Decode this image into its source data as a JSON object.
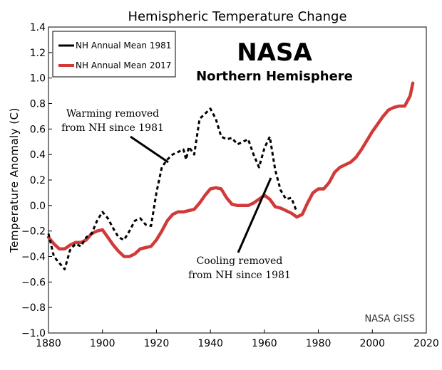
{
  "chart_data": {
    "type": "line",
    "title": "Hemispheric Temperature Change",
    "ylabel": "Temperature Anomaly (C)",
    "xlim": [
      1880,
      2020
    ],
    "ylim": [
      -1.0,
      1.4
    ],
    "xticks": [
      1880,
      1900,
      1920,
      1940,
      1960,
      1980,
      2000,
      2020
    ],
    "xtick_labels": [
      "1880",
      "1900",
      "1920",
      "1940",
      "1960",
      "1980",
      "2000",
      "2020"
    ],
    "yticks": [
      -1.0,
      -0.8,
      -0.6,
      -0.4,
      -0.2,
      0.0,
      0.2,
      0.4,
      0.6,
      0.8,
      1.0,
      1.2,
      1.4
    ],
    "ytick_labels": [
      "−1.0",
      "−0.8",
      "−0.6",
      "−0.4",
      "−0.2",
      "0.0",
      "0.2",
      "0.4",
      "0.6",
      "0.8",
      "1.0",
      "1.2",
      "1.4"
    ],
    "legend_position": "top-left",
    "grid": false,
    "series": [
      {
        "name": "NH Annual Mean 1981",
        "color": "#000000",
        "style": "dashed",
        "x": [
          1880,
          1882,
          1884,
          1886,
          1888,
          1890,
          1892,
          1894,
          1896,
          1898,
          1900,
          1902,
          1904,
          1906,
          1908,
          1910,
          1912,
          1914,
          1916,
          1918,
          1920,
          1922,
          1924,
          1926,
          1928,
          1930,
          1931,
          1932,
          1934,
          1936,
          1938,
          1940,
          1942,
          1944,
          1946,
          1948,
          1950,
          1952,
          1954,
          1956,
          1958,
          1960,
          1962,
          1964,
          1966,
          1968,
          1970,
          1972
        ],
        "y": [
          -0.22,
          -0.4,
          -0.45,
          -0.5,
          -0.35,
          -0.3,
          -0.32,
          -0.25,
          -0.22,
          -0.12,
          -0.05,
          -0.1,
          -0.18,
          -0.25,
          -0.27,
          -0.2,
          -0.12,
          -0.1,
          -0.15,
          -0.16,
          0.1,
          0.3,
          0.36,
          0.4,
          0.42,
          0.44,
          0.36,
          0.46,
          0.4,
          0.68,
          0.72,
          0.76,
          0.68,
          0.54,
          0.52,
          0.53,
          0.48,
          0.5,
          0.52,
          0.4,
          0.3,
          0.45,
          0.54,
          0.28,
          0.12,
          0.05,
          0.06,
          -0.05
        ]
      },
      {
        "name": "NH Annual Mean 2017",
        "color": "#d23a3a",
        "style": "solid",
        "x": [
          1880,
          1882,
          1884,
          1886,
          1888,
          1890,
          1892,
          1894,
          1896,
          1898,
          1900,
          1902,
          1904,
          1906,
          1908,
          1910,
          1912,
          1914,
          1916,
          1918,
          1920,
          1922,
          1924,
          1926,
          1928,
          1930,
          1932,
          1934,
          1936,
          1938,
          1940,
          1942,
          1944,
          1946,
          1948,
          1950,
          1952,
          1954,
          1956,
          1958,
          1960,
          1962,
          1964,
          1966,
          1968,
          1970,
          1972,
          1974,
          1976,
          1978,
          1980,
          1982,
          1984,
          1986,
          1988,
          1990,
          1992,
          1994,
          1996,
          1998,
          2000,
          2002,
          2004,
          2006,
          2008,
          2010,
          2012,
          2014,
          2015
        ],
        "y": [
          -0.25,
          -0.3,
          -0.34,
          -0.34,
          -0.31,
          -0.29,
          -0.29,
          -0.27,
          -0.22,
          -0.2,
          -0.19,
          -0.25,
          -0.31,
          -0.36,
          -0.4,
          -0.4,
          -0.38,
          -0.34,
          -0.33,
          -0.32,
          -0.27,
          -0.2,
          -0.12,
          -0.07,
          -0.05,
          -0.05,
          -0.04,
          -0.03,
          0.02,
          0.08,
          0.13,
          0.14,
          0.13,
          0.06,
          0.01,
          0.0,
          0.0,
          0.0,
          0.02,
          0.05,
          0.08,
          0.05,
          -0.01,
          -0.02,
          -0.04,
          -0.06,
          -0.09,
          -0.07,
          0.02,
          0.1,
          0.13,
          0.13,
          0.18,
          0.26,
          0.3,
          0.32,
          0.34,
          0.38,
          0.44,
          0.51,
          0.58,
          0.64,
          0.7,
          0.75,
          0.77,
          0.78,
          0.78,
          0.86,
          0.96
        ]
      }
    ],
    "annotations": {
      "nasa": "NASA",
      "subtitle": "Northern Hemisphere",
      "warming_line1": "Warming removed",
      "warming_line2": "from NH since 1981",
      "cooling_line1": "Cooling removed",
      "cooling_line2": "from NH since 1981",
      "credit": "NASA GISS"
    }
  }
}
